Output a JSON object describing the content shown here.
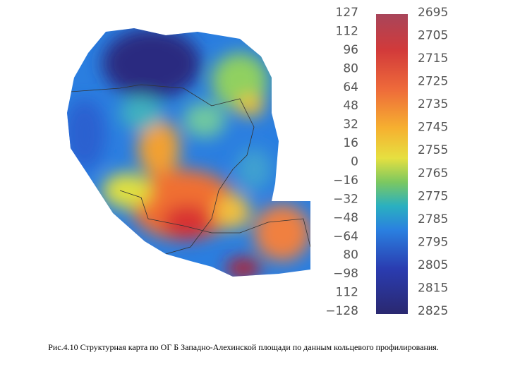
{
  "colorbar": {
    "left_labels": [
      "127",
      "112",
      "96",
      "80",
      "64",
      "48",
      "32",
      "16",
      "0",
      "−16",
      "−32",
      "−48",
      "−64",
      "80",
      "−98",
      "112",
      "−128"
    ],
    "right_labels": [
      "2695",
      "2705",
      "2715",
      "2725",
      "2735",
      "2745",
      "2755",
      "2765",
      "2775",
      "2785",
      "2795",
      "2805",
      "2815",
      "2825"
    ]
  },
  "caption": "Рис.4.10 Структурная карта по ОГ Б Западно-Алехинской площади по данным кольцевого профилирования."
}
